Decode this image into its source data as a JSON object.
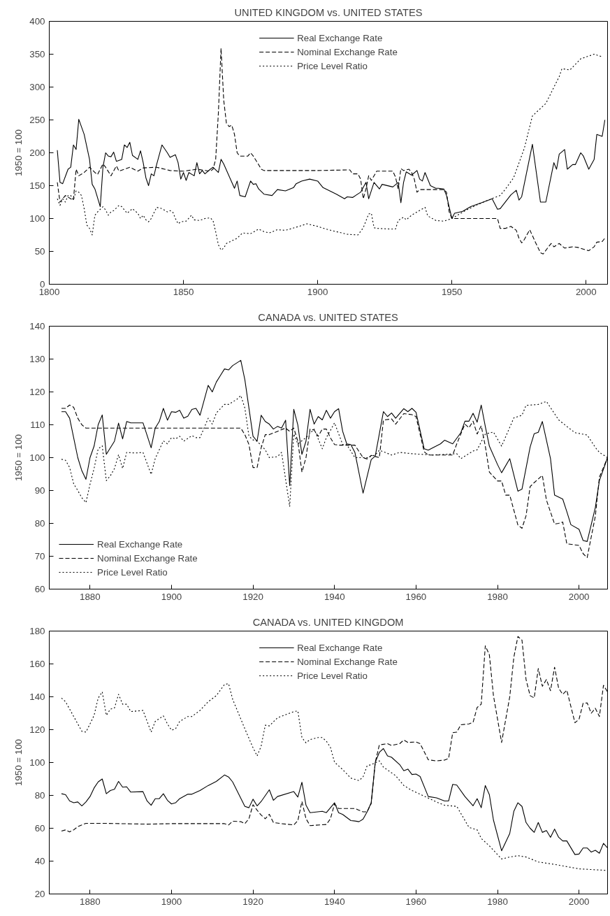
{
  "chart_data": [
    {
      "type": "line",
      "title": "UNITED KINGDOM vs. UNITED STATES",
      "ylabel": "1950 = 100",
      "xlim": [
        1800,
        2008
      ],
      "xticks": [
        1800,
        1850,
        1900,
        1950,
        2000
      ],
      "ylim": [
        0,
        400
      ],
      "yticks": [
        0,
        50,
        100,
        150,
        200,
        250,
        300,
        350,
        400
      ],
      "grid": false,
      "legend": "top",
      "series": [
        {
          "name": "Real Exchange Rate",
          "color": "#000000",
          "line_style": "solid",
          "x": [
            1803,
            1804,
            1805,
            1807,
            1808,
            1809,
            1810,
            1811,
            1813,
            1815,
            1816,
            1817,
            1819,
            1820,
            1821,
            1822,
            1823,
            1824,
            1825,
            1827,
            1828,
            1829,
            1830,
            1831,
            1833,
            1834,
            1835,
            1836,
            1837,
            1838,
            1839,
            1840,
            1842,
            1844,
            1845,
            1847,
            1848,
            1849,
            1850,
            1851,
            1852,
            1854,
            1855,
            1856,
            1857,
            1858,
            1860,
            1861,
            1863,
            1864,
            1865,
            1869,
            1870,
            1871,
            1873,
            1875,
            1876,
            1877,
            1878,
            1880,
            1883,
            1885,
            1888,
            1891,
            1892,
            1894,
            1897,
            1900,
            1902,
            1907,
            1910,
            1911,
            1913,
            1916,
            1918,
            1919,
            1921,
            1923,
            1924,
            1928,
            1930,
            1931,
            1932,
            1933,
            1935,
            1937,
            1938,
            1939,
            1940,
            1942,
            1944,
            1945,
            1947,
            1948,
            1950,
            1951,
            1954,
            1957,
            1961,
            1965,
            1967,
            1968,
            1972,
            1974,
            1975,
            1976,
            1980,
            1983,
            1985,
            1988,
            1989,
            1990,
            1992,
            1993,
            1995,
            1996,
            1998,
            1999,
            2001,
            2003,
            2004,
            2006,
            2007
          ],
          "values": [
            204,
            155,
            153,
            175,
            178,
            212,
            205,
            251,
            228,
            190,
            152,
            145,
            118,
            178,
            200,
            195,
            194,
            201,
            187,
            190,
            212,
            208,
            216,
            196,
            190,
            203,
            185,
            162,
            150,
            168,
            165,
            182,
            212,
            200,
            193,
            197,
            185,
            160,
            170,
            158,
            170,
            165,
            185,
            168,
            173,
            168,
            175,
            178,
            170,
            190,
            183,
            146,
            157,
            135,
            133,
            157,
            152,
            153,
            145,
            137,
            135,
            144,
            142,
            147,
            153,
            157,
            160,
            157,
            147,
            137,
            130,
            133,
            132,
            140,
            155,
            130,
            155,
            145,
            152,
            148,
            155,
            124,
            155,
            171,
            166,
            173,
            160,
            157,
            170,
            150,
            146,
            146,
            145,
            135,
            100,
            108,
            111,
            118,
            124,
            130,
            114,
            115,
            136,
            143,
            128,
            133,
            213,
            125,
            125,
            185,
            175,
            198,
            205,
            175,
            182,
            182,
            200,
            195,
            175,
            190,
            228,
            225,
            250
          ]
        },
        {
          "name": "Nominal Exchange Rate",
          "color": "#000000",
          "line_style": "dashed",
          "x": [
            1803,
            1804,
            1805,
            1806,
            1808,
            1809,
            1810,
            1811,
            1813,
            1815,
            1817,
            1818,
            1820,
            1821,
            1823,
            1825,
            1826,
            1830,
            1833,
            1835,
            1840,
            1845,
            1850,
            1855,
            1860,
            1861,
            1862,
            1863,
            1864,
            1865,
            1866,
            1867,
            1868,
            1869,
            1870,
            1871,
            1874,
            1875,
            1876,
            1878,
            1879,
            1880,
            1900,
            1912,
            1913,
            1915,
            1916,
            1917,
            1918,
            1919,
            1920,
            1922,
            1928,
            1929,
            1930,
            1931,
            1932,
            1934,
            1935,
            1936,
            1937,
            1938,
            1947,
            1948,
            1949,
            1950,
            1967,
            1968,
            1970,
            1972,
            1974,
            1975,
            1976,
            1977,
            1979,
            1981,
            1983,
            1984,
            1986,
            1987,
            1988,
            1990,
            1992,
            1995,
            1997,
            2000,
            2001,
            2003,
            2004,
            2006,
            2007
          ],
          "values": [
            155,
            125,
            130,
            135,
            130,
            128,
            175,
            165,
            170,
            178,
            170,
            167,
            183,
            178,
            165,
            180,
            172,
            178,
            172,
            177,
            178,
            173,
            172,
            175,
            172,
            175,
            190,
            260,
            359,
            280,
            245,
            240,
            242,
            228,
            200,
            195,
            195,
            200,
            195,
            182,
            175,
            173,
            173,
            174,
            168,
            168,
            160,
            130,
            145,
            165,
            158,
            172,
            172,
            163,
            145,
            176,
            173,
            175,
            170,
            160,
            140,
            144,
            144,
            140,
            110,
            100,
            100,
            85,
            85,
            88,
            82,
            70,
            63,
            68,
            83,
            65,
            48,
            46,
            57,
            62,
            57,
            62,
            55,
            57,
            56,
            52,
            51,
            57,
            64,
            65,
            70
          ]
        },
        {
          "name": "Price Level Ratio",
          "color": "#000000",
          "line_style": "dotted",
          "x": [
            1803,
            1804,
            1805,
            1806,
            1807,
            1808,
            1809,
            1810,
            1811,
            1812,
            1813,
            1814,
            1815,
            1816,
            1817,
            1818,
            1820,
            1821,
            1822,
            1823,
            1824,
            1826,
            1827,
            1829,
            1831,
            1833,
            1834,
            1835,
            1836,
            1837,
            1838,
            1840,
            1842,
            1844,
            1845,
            1846,
            1847,
            1848,
            1849,
            1851,
            1853,
            1854,
            1856,
            1858,
            1860,
            1861,
            1862,
            1863,
            1864,
            1865,
            1866,
            1868,
            1870,
            1872,
            1875,
            1878,
            1880,
            1882,
            1885,
            1888,
            1893,
            1896,
            1900,
            1903,
            1908,
            1911,
            1915,
            1917,
            1919,
            1920,
            1921,
            1922,
            1927,
            1929,
            1930,
            1932,
            1933,
            1935,
            1937,
            1940,
            1941,
            1944,
            1947,
            1950,
            1955,
            1960,
            1966,
            1968,
            1970,
            1973,
            1977,
            1980,
            1985,
            1990,
            1991,
            1994,
            1998,
            2003,
            2006
          ],
          "values": [
            130,
            120,
            130,
            125,
            135,
            135,
            128,
            142,
            140,
            135,
            115,
            90,
            85,
            75,
            105,
            110,
            118,
            113,
            105,
            110,
            112,
            120,
            118,
            108,
            115,
            108,
            100,
            105,
            98,
            95,
            100,
            117,
            115,
            110,
            112,
            110,
            100,
            92,
            95,
            96,
            105,
            98,
            97,
            100,
            101,
            97,
            80,
            60,
            52,
            55,
            62,
            66,
            70,
            78,
            77,
            84,
            80,
            78,
            83,
            82,
            88,
            92,
            88,
            84,
            79,
            76,
            75,
            86,
            107,
            108,
            86,
            85,
            84,
            84,
            97,
            102,
            98,
            105,
            110,
            117,
            104,
            97,
            96,
            100,
            112,
            122,
            132,
            135,
            145,
            162,
            207,
            256,
            275,
            316,
            328,
            326,
            343,
            350,
            346
          ]
        }
      ]
    },
    {
      "type": "line",
      "title": "CANADA vs. UNITED STATES",
      "ylabel": "1950 = 100",
      "xlim": [
        1870,
        2007
      ],
      "xticks": [
        1880,
        1900,
        1920,
        1940,
        1960,
        1980,
        2000
      ],
      "ylim": [
        60,
        140
      ],
      "yticks": [
        60,
        70,
        80,
        90,
        100,
        110,
        120,
        130,
        140
      ],
      "grid": false,
      "legend": "bottom left",
      "series": [
        {
          "name": "Real Exchange Rate",
          "color": "#000000",
          "line_style": "solid",
          "x": [
            1873,
            1874,
            1875,
            1876,
            1877,
            1878,
            1879,
            1880,
            1881,
            1882,
            1883,
            1884,
            1886,
            1887,
            1888,
            1889,
            1890,
            1893,
            1895,
            1896,
            1897,
            1898,
            1899,
            1900,
            1901,
            1902,
            1903,
            1904,
            1905,
            1906,
            1907,
            1909,
            1910,
            1911,
            1912,
            1913,
            1914,
            1915,
            1917,
            1918,
            1920,
            1921,
            1922,
            1923,
            1924,
            1925,
            1926,
            1927,
            1928,
            1929,
            1930,
            1931,
            1932,
            1933,
            1934,
            1935,
            1936,
            1937,
            1938,
            1939,
            1940,
            1941,
            1942,
            1943,
            1944,
            1945,
            1947,
            1949,
            1950,
            1952,
            1953,
            1954,
            1955,
            1957,
            1958,
            1959,
            1960,
            1962,
            1963,
            1966,
            1967,
            1969,
            1971,
            1972,
            1973,
            1974,
            1975,
            1976,
            1977,
            1978,
            1980,
            1981,
            1983,
            1985,
            1986,
            1988,
            1989,
            1990,
            1991,
            1993,
            1994,
            1996,
            1997,
            1998,
            2000,
            2001,
            2002,
            2004,
            2005,
            2007
          ],
          "values": [
            114,
            114,
            112,
            106,
            100,
            96,
            93.4,
            100,
            103.5,
            110,
            113,
            101,
            105,
            110.5,
            105.7,
            111,
            110.6,
            110.6,
            103,
            109,
            111,
            115,
            111.4,
            114,
            113.8,
            114.4,
            112,
            112.6,
            114.7,
            115,
            112.9,
            122,
            120,
            123,
            125,
            127,
            126.7,
            128,
            129.6,
            123.7,
            106.5,
            105,
            112.9,
            111,
            110.2,
            108.7,
            109.5,
            109,
            111.4,
            91.5,
            114.7,
            109.9,
            101,
            105,
            114.7,
            110.2,
            112.5,
            111.5,
            114.4,
            112,
            114,
            114.9,
            108,
            104.2,
            104,
            101.6,
            89.2,
            99.4,
            100.5,
            114,
            112.5,
            113.6,
            112,
            114.9,
            114,
            115,
            113.8,
            102.7,
            102.3,
            104.2,
            105.3,
            104.2,
            107.6,
            111.1,
            111.1,
            113.5,
            110.8,
            116,
            109.5,
            103.5,
            97.9,
            95.4,
            99.7,
            89.8,
            90.4,
            103.2,
            107.3,
            107.7,
            111,
            99.7,
            88.6,
            87.4,
            83.6,
            79.6,
            78.2,
            74.8,
            74.5,
            84.8,
            93,
            100
          ]
        },
        {
          "name": "Nominal Exchange Rate",
          "color": "#000000",
          "line_style": "dashed",
          "x": [
            1873,
            1874,
            1875,
            1876,
            1877,
            1878,
            1879,
            1917,
            1918,
            1919,
            1920,
            1921,
            1922,
            1923,
            1924,
            1926,
            1928,
            1929,
            1930,
            1931,
            1932,
            1933,
            1934,
            1935,
            1936,
            1937,
            1938,
            1939,
            1940,
            1941,
            1943,
            1945,
            1947,
            1948,
            1949,
            1951,
            1952,
            1954,
            1955,
            1957,
            1959,
            1960,
            1962,
            1963,
            1969,
            1970,
            1972,
            1973,
            1974,
            1975,
            1976,
            1977,
            1978,
            1980,
            1981,
            1982,
            1983,
            1985,
            1986,
            1987,
            1988,
            1989,
            1991,
            1992,
            1994,
            1995,
            1996,
            1997,
            2000,
            2001,
            2002,
            2004,
            2005,
            2007
          ],
          "values": [
            115,
            115,
            116,
            115.3,
            112,
            110,
            109,
            109,
            107,
            104,
            97,
            97,
            103,
            107,
            107,
            108,
            109,
            108,
            109,
            105,
            95.6,
            100,
            108.7,
            108.4,
            106.5,
            108.7,
            108.7,
            106,
            104,
            103.8,
            103.8,
            103.8,
            100,
            99.6,
            100.7,
            100,
            111.4,
            111.8,
            110.2,
            113.4,
            113.1,
            112.5,
            101.8,
            100.8,
            100.8,
            104.2,
            110.2,
            109.1,
            111.1,
            107.2,
            109.7,
            103.5,
            95.6,
            92.9,
            92.9,
            88.6,
            88.6,
            79.5,
            78.5,
            82.3,
            91.2,
            92.4,
            94.6,
            87.1,
            79.8,
            80,
            80.4,
            73.8,
            73.3,
            70.8,
            69.6,
            82.2,
            94.1,
            100
          ]
        },
        {
          "name": "Price Level Ratio",
          "color": "#000000",
          "line_style": "dotted",
          "x": [
            1873,
            1874,
            1875,
            1876,
            1877,
            1878,
            1879,
            1880,
            1881,
            1882,
            1883,
            1884,
            1885,
            1886,
            1887,
            1888,
            1889,
            1891,
            1893,
            1895,
            1896,
            1898,
            1899,
            1900,
            1901,
            1902,
            1903,
            1905,
            1906,
            1907,
            1909,
            1910,
            1911,
            1913,
            1914,
            1916,
            1917,
            1918,
            1919,
            1920,
            1921,
            1923,
            1924,
            1926,
            1927,
            1929,
            1930,
            1931,
            1933,
            1935,
            1937,
            1938,
            1939,
            1940,
            1942,
            1943,
            1945,
            1948,
            1950,
            1951,
            1954,
            1956,
            1959,
            1964,
            1970,
            1971,
            1974,
            1975,
            1977,
            1979,
            1981,
            1984,
            1986,
            1987,
            1990,
            1992,
            1995,
            1997,
            1999,
            2002,
            2004,
            2005,
            2007
          ],
          "values": [
            99.5,
            99.2,
            97,
            92,
            90,
            87.8,
            86.3,
            91.9,
            96.7,
            102.7,
            103.6,
            93,
            94.5,
            96.7,
            100.9,
            96.7,
            101.6,
            101.4,
            101.6,
            94.9,
            99.7,
            105.1,
            104.2,
            106.1,
            105.7,
            106.5,
            105,
            106.7,
            106.1,
            106.1,
            112,
            110.2,
            113.6,
            116.2,
            116.2,
            117.7,
            118.9,
            115.1,
            106.5,
            105.4,
            105,
            102.4,
            100,
            100.3,
            101.6,
            85.1,
            107.2,
            104.2,
            106.1,
            108.7,
            102.7,
            106.1,
            108.3,
            110.6,
            104,
            104,
            100,
            100,
            100.8,
            102.3,
            100.8,
            101.6,
            101.2,
            100.8,
            101.2,
            99.7,
            102,
            102.4,
            107.2,
            107.8,
            103.5,
            112.1,
            112.9,
            115.9,
            116.2,
            117.1,
            111.5,
            109.5,
            107.6,
            106.9,
            103.1,
            101.6,
            100
          ]
        }
      ]
    },
    {
      "type": "line",
      "title": "CANADA vs. UNITED KINGDOM",
      "ylabel": "1950 = 100",
      "xlim": [
        1870,
        2007
      ],
      "xticks": [
        1880,
        1900,
        1920,
        1940,
        1960,
        1980,
        2000
      ],
      "ylim": [
        20,
        180
      ],
      "yticks": [
        20,
        40,
        60,
        80,
        100,
        120,
        140,
        160,
        180
      ],
      "grid": false,
      "legend": "top",
      "series": [
        {
          "name": "Real Exchange Rate",
          "color": "#000000",
          "line_style": "solid",
          "x": [
            1873,
            1874,
            1875,
            1876,
            1877,
            1878,
            1879,
            1880,
            1881,
            1882,
            1883,
            1884,
            1885,
            1886,
            1887,
            1888,
            1889,
            1890,
            1893,
            1894,
            1895,
            1896,
            1897,
            1898,
            1899,
            1900,
            1901,
            1902,
            1904,
            1905,
            1907,
            1909,
            1911,
            1913,
            1914,
            1915,
            1918,
            1919,
            1920,
            1921,
            1922,
            1924,
            1925,
            1926,
            1930,
            1931,
            1932,
            1933,
            1934,
            1937,
            1938,
            1940,
            1941,
            1942,
            1944,
            1945,
            1946,
            1947,
            1948,
            1949,
            1950,
            1951,
            1952,
            1953,
            1954,
            1956,
            1957,
            1958,
            1959,
            1960,
            1961,
            1963,
            1965,
            1967,
            1968,
            1969,
            1970,
            1972,
            1974,
            1975,
            1976,
            1977,
            1978,
            1979,
            1981,
            1983,
            1984,
            1985,
            1986,
            1987,
            1988,
            1989,
            1990,
            1991,
            1992,
            1993,
            1994,
            1995,
            1996,
            1997,
            1999,
            2000,
            2001,
            2002,
            2003,
            2004,
            2005,
            2006,
            2007
          ],
          "values": [
            81,
            80.4,
            76.6,
            75.5,
            76,
            73.6,
            76,
            79.3,
            84.5,
            88.2,
            90,
            81,
            83,
            83.7,
            88.5,
            85,
            85.2,
            82,
            82.3,
            76.6,
            74,
            78,
            78,
            81,
            77,
            74.8,
            75.5,
            78,
            80.7,
            80.7,
            83,
            86,
            88.5,
            92.4,
            91.2,
            88.2,
            73.3,
            72.5,
            77.7,
            73.6,
            76.3,
            83.4,
            77,
            79.3,
            82.3,
            79,
            88,
            74,
            69.5,
            70.3,
            69.5,
            75.5,
            69.5,
            68.4,
            64.7,
            64.4,
            64,
            65.5,
            70,
            75.5,
            100.2,
            106.2,
            108.5,
            104,
            103.2,
            98.7,
            95,
            96,
            92.7,
            93,
            91.5,
            79.3,
            78.5,
            76.6,
            76.6,
            86.7,
            86.3,
            79.3,
            73.7,
            78,
            72.5,
            86,
            80.4,
            65,
            46.3,
            56.8,
            70.3,
            75.5,
            73.3,
            63.5,
            60,
            57.5,
            63.5,
            57.5,
            58.6,
            54.5,
            59.5,
            54.5,
            52.3,
            52.3,
            44,
            44.3,
            48,
            48,
            45.5,
            46.6,
            44.8,
            50.8,
            48
          ]
        },
        {
          "name": "Nominal Exchange Rate",
          "color": "#000000",
          "line_style": "dashed",
          "x": [
            1873,
            1874,
            1875,
            1876,
            1877,
            1878,
            1879,
            1883,
            1894,
            1900,
            1913,
            1914,
            1915,
            1917,
            1918,
            1919,
            1920,
            1921,
            1922,
            1923,
            1924,
            1925,
            1927,
            1930,
            1931,
            1932,
            1933,
            1934,
            1938,
            1939,
            1940,
            1941,
            1945,
            1946,
            1947,
            1948,
            1949,
            1950,
            1951,
            1953,
            1954,
            1956,
            1957,
            1958,
            1960,
            1961,
            1963,
            1965,
            1967,
            1968,
            1969,
            1970,
            1971,
            1973,
            1974,
            1975,
            1976,
            1977,
            1978,
            1979,
            1981,
            1983,
            1984,
            1985,
            1986,
            1987,
            1988,
            1989,
            1990,
            1991,
            1992,
            1993,
            1994,
            1995,
            1996,
            1997,
            1999,
            2000,
            2001,
            2002,
            2003,
            2004,
            2005,
            2006,
            2007
          ],
          "values": [
            58.3,
            59,
            57.8,
            59,
            61,
            62,
            63,
            63,
            62.5,
            62.8,
            62.8,
            62,
            64.3,
            64,
            62.8,
            65.8,
            74.3,
            71,
            68,
            65.8,
            68.5,
            63.5,
            62.8,
            62,
            64.6,
            76.3,
            65.8,
            61.6,
            62.3,
            65.8,
            74.7,
            72,
            72,
            71,
            70,
            70,
            75,
            100.2,
            110.7,
            111.5,
            110.4,
            111.5,
            113.7,
            112.2,
            112.5,
            111.5,
            101.7,
            101,
            101.5,
            102.5,
            118.2,
            118.5,
            123,
            123.5,
            124.5,
            133.5,
            135.5,
            171,
            165.5,
            140.7,
            112.2,
            140,
            164,
            176.7,
            174.5,
            150.5,
            140.7,
            139.3,
            157.2,
            146.4,
            150.5,
            143.7,
            158,
            145.2,
            141.5,
            144,
            124.2,
            126.3,
            136,
            136.3,
            130,
            133,
            128,
            147,
            143
          ]
        },
        {
          "name": "Price Level Ratio",
          "color": "#000000",
          "line_style": "dotted",
          "x": [
            1873,
            1874,
            1875,
            1876,
            1877,
            1878,
            1879,
            1880,
            1881,
            1882,
            1883,
            1884,
            1885,
            1886,
            1887,
            1888,
            1889,
            1890,
            1893,
            1895,
            1896,
            1898,
            1899,
            1900,
            1901,
            1902,
            1904,
            1905,
            1907,
            1909,
            1911,
            1913,
            1914,
            1915,
            1918,
            1920,
            1921,
            1922,
            1923,
            1924,
            1926,
            1930,
            1931,
            1932,
            1933,
            1934,
            1936,
            1937,
            1938,
            1939,
            1940,
            1942,
            1944,
            1946,
            1947,
            1948,
            1949,
            1951,
            1952,
            1955,
            1957,
            1959,
            1961,
            1965,
            1967,
            1970,
            1973,
            1975,
            1976,
            1978,
            1981,
            1983,
            1985,
            1987,
            1990,
            1994,
            2000,
            2007
          ],
          "values": [
            139.2,
            137,
            132.5,
            128,
            123.5,
            119,
            118.5,
            123.5,
            128.7,
            139.2,
            143,
            128.7,
            132.5,
            133.2,
            141.5,
            135.5,
            135.5,
            131,
            131.7,
            118.5,
            125,
            128.4,
            123.5,
            119.7,
            120.5,
            125,
            128,
            128,
            131.7,
            137,
            140.7,
            147.5,
            148,
            138.5,
            120.5,
            109,
            104,
            110,
            122.7,
            122.3,
            127.2,
            131,
            131.4,
            115.2,
            112,
            114,
            115.2,
            115.2,
            113,
            109.2,
            100.2,
            95.7,
            90.5,
            89,
            91.2,
            98,
            98.7,
            101,
            97.2,
            92,
            86,
            83,
            80.7,
            76,
            74,
            73.3,
            60.5,
            59,
            53.8,
            49.3,
            41.3,
            42.5,
            43.3,
            42.5,
            39.5,
            38,
            35.3,
            34.3
          ]
        }
      ]
    }
  ]
}
